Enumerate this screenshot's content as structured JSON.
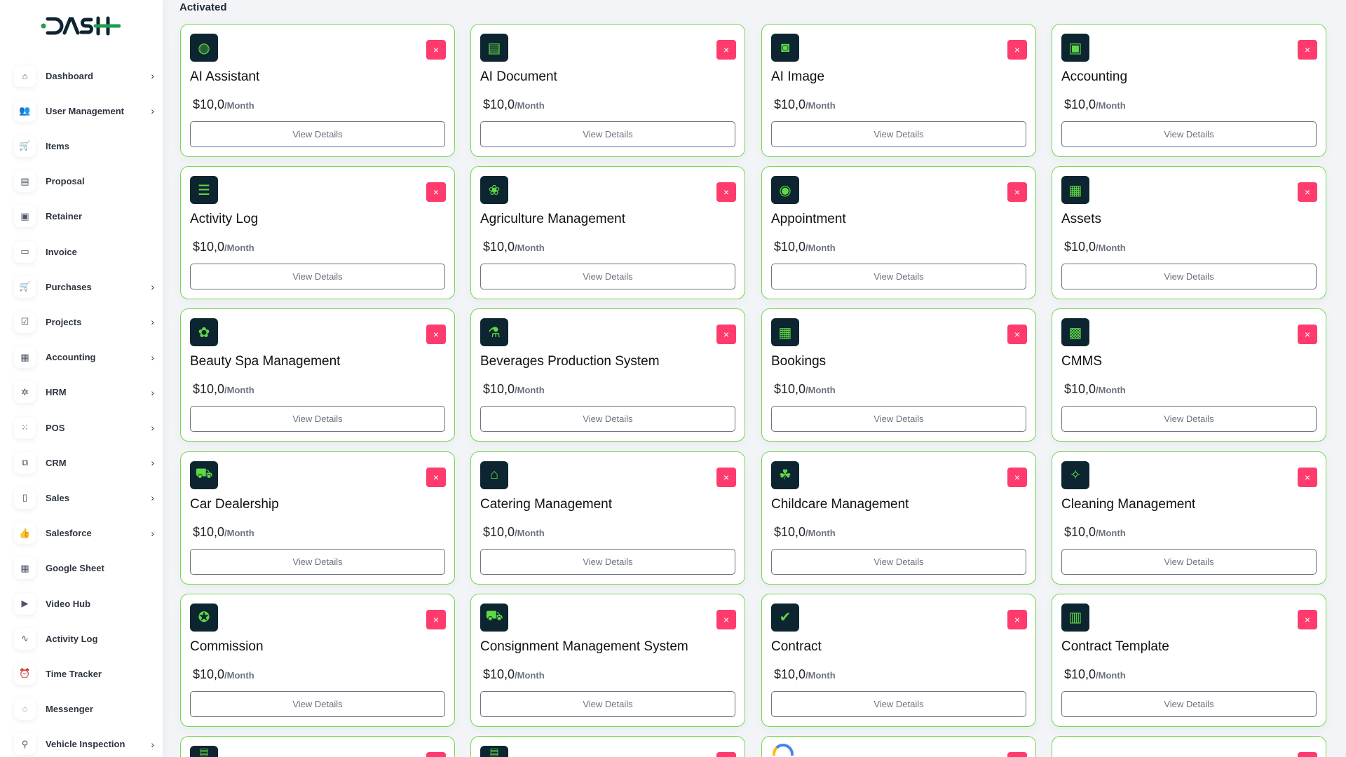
{
  "brand": {
    "logo_text": "DASH",
    "accent": "#1aa04f"
  },
  "sidebar": {
    "items": [
      {
        "label": "Dashboard",
        "icon": "home-icon",
        "chevron": true
      },
      {
        "label": "User Management",
        "icon": "users-icon",
        "chevron": true
      },
      {
        "label": "Items",
        "icon": "cart-icon",
        "chevron": false
      },
      {
        "label": "Proposal",
        "icon": "proposal-icon",
        "chevron": false
      },
      {
        "label": "Retainer",
        "icon": "retainer-icon",
        "chevron": false
      },
      {
        "label": "Invoice",
        "icon": "invoice-icon",
        "chevron": false
      },
      {
        "label": "Purchases",
        "icon": "cart-icon",
        "chevron": true
      },
      {
        "label": "Projects",
        "icon": "check-square-icon",
        "chevron": true
      },
      {
        "label": "Accounting",
        "icon": "grid-icon",
        "chevron": true
      },
      {
        "label": "HRM",
        "icon": "hrm-icon",
        "chevron": true
      },
      {
        "label": "POS",
        "icon": "dots-grid-icon",
        "chevron": true
      },
      {
        "label": "CRM",
        "icon": "crm-icon",
        "chevron": true
      },
      {
        "label": "Sales",
        "icon": "file-icon",
        "chevron": true
      },
      {
        "label": "Salesforce",
        "icon": "thumbs-up-icon",
        "chevron": true
      },
      {
        "label": "Google Sheet",
        "icon": "table-icon",
        "chevron": false
      },
      {
        "label": "Video Hub",
        "icon": "video-icon",
        "chevron": false
      },
      {
        "label": "Activity Log",
        "icon": "pulse-icon",
        "chevron": false
      },
      {
        "label": "Time Tracker",
        "icon": "alarm-clock-icon",
        "chevron": false
      },
      {
        "label": "Messenger",
        "icon": "chat-icon",
        "chevron": false
      },
      {
        "label": "Vehicle Inspection",
        "icon": "motorbike-icon",
        "chevron": true
      }
    ]
  },
  "main": {
    "section_title": "Activated",
    "close_label": "×",
    "view_label": "View Details",
    "per_label": "/Month",
    "modules": [
      {
        "name": "AI Assistant",
        "price": "$10,0",
        "icon": "brain-icon"
      },
      {
        "name": "AI Document",
        "price": "$10,0",
        "icon": "document-icon"
      },
      {
        "name": "AI Image",
        "price": "$10,0",
        "icon": "camera-icon"
      },
      {
        "name": "Accounting",
        "price": "$10,0",
        "icon": "briefcase-icon"
      },
      {
        "name": "Activity Log",
        "price": "$10,0",
        "icon": "log-icon"
      },
      {
        "name": "Agriculture Management",
        "price": "$10,0",
        "icon": "agriculture-icon"
      },
      {
        "name": "Appointment",
        "price": "$10,0",
        "icon": "appointment-icon"
      },
      {
        "name": "Assets",
        "price": "$10,0",
        "icon": "assets-icon"
      },
      {
        "name": "Beauty Spa Management",
        "price": "$10,0",
        "icon": "spa-icon"
      },
      {
        "name": "Beverages Production System",
        "price": "$10,0",
        "icon": "beverage-icon"
      },
      {
        "name": "Bookings",
        "price": "$10,0",
        "icon": "calendar-icon"
      },
      {
        "name": "CMMS",
        "price": "$10,0",
        "icon": "cmms-icon"
      },
      {
        "name": "Car Dealership",
        "price": "$10,0",
        "icon": "car-icon"
      },
      {
        "name": "Catering Management",
        "price": "$10,0",
        "icon": "catering-icon"
      },
      {
        "name": "Childcare Management",
        "price": "$10,0",
        "icon": "childcare-icon"
      },
      {
        "name": "Cleaning Management",
        "price": "$10,0",
        "icon": "cleaning-icon"
      },
      {
        "name": "Commission",
        "price": "$10,0",
        "icon": "commission-icon"
      },
      {
        "name": "Consignment Management System",
        "price": "$10,0",
        "icon": "truck-icon"
      },
      {
        "name": "Contract",
        "price": "$10,0",
        "icon": "contract-icon"
      },
      {
        "name": "Contract Template",
        "price": "$10,0",
        "icon": "contract-template-icon"
      }
    ],
    "partial_row_icons": [
      "module-icon",
      "module-icon",
      "google-icon",
      ""
    ]
  }
}
